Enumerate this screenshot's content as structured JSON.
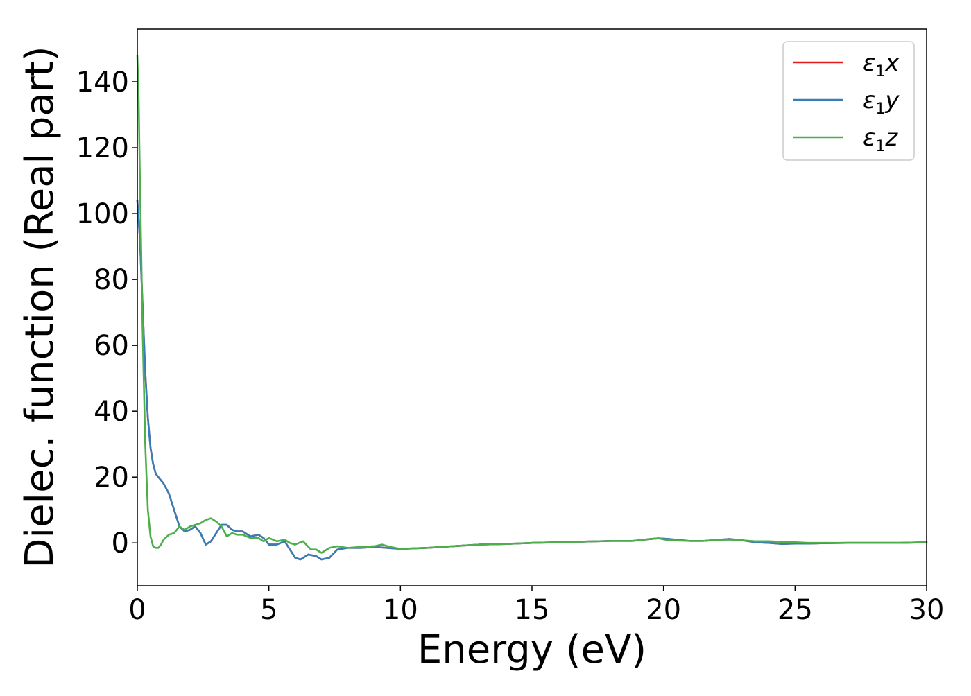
{
  "chart_data": {
    "type": "line",
    "title": "",
    "xlabel": "Energy (eV)",
    "ylabel": "Dielec. function (Real part)",
    "xlim": [
      0,
      30
    ],
    "ylim": [
      -13,
      156
    ],
    "xticks": [
      0,
      5,
      10,
      15,
      20,
      25,
      30
    ],
    "yticks": [
      0,
      20,
      40,
      60,
      80,
      100,
      120,
      140
    ],
    "xtick_labels": [
      "0",
      "5",
      "10",
      "15",
      "20",
      "25",
      "30"
    ],
    "ytick_labels": [
      "0",
      "20",
      "40",
      "60",
      "80",
      "100",
      "120",
      "140"
    ],
    "grid": false,
    "legend_position": "top-right",
    "legend": [
      {
        "symbol": "ε",
        "subscript": "1",
        "suffix": "x",
        "color": "#e41a1c"
      },
      {
        "symbol": "ε",
        "subscript": "1",
        "suffix": "y",
        "color": "#377eb8"
      },
      {
        "symbol": "ε",
        "subscript": "1",
        "suffix": "z",
        "color": "#4daf4a"
      }
    ],
    "series": [
      {
        "color": "#e41a1c",
        "x": [
          0.0,
          0.1,
          0.2,
          0.3,
          0.4,
          0.5,
          0.6,
          0.7,
          0.8,
          0.9,
          1.0,
          1.2,
          1.4,
          1.6,
          1.8,
          2.0,
          2.2,
          2.4,
          2.6,
          2.8,
          3.0,
          3.2,
          3.4,
          3.6,
          3.8,
          4.0,
          4.3,
          4.6,
          4.8,
          5.0,
          5.3,
          5.6,
          5.8,
          6.0,
          6.2,
          6.5,
          6.8,
          7.0,
          7.3,
          7.6,
          8.0,
          8.5,
          9.0,
          9.5,
          10.0,
          11.0,
          12.0,
          13.0,
          14.0,
          15.0,
          16.0,
          17.0,
          18.0,
          18.8,
          19.5,
          19.8,
          20.2,
          21.0,
          21.5,
          22.0,
          22.5,
          23.0,
          23.5,
          24.0,
          24.5,
          25.0,
          25.5,
          26.0,
          27.0,
          28.0,
          29.0,
          30.0
        ],
        "y": [
          104,
          92,
          72,
          52,
          38,
          29,
          24,
          21,
          20,
          19,
          18,
          15,
          10,
          5,
          3.5,
          4,
          5,
          3,
          -0.5,
          0.5,
          3,
          5.5,
          5.5,
          4,
          3.5,
          3.5,
          2,
          2.5,
          1.5,
          -0.5,
          -0.5,
          0.5,
          -2,
          -4.5,
          -5,
          -3.5,
          -4,
          -5,
          -4.5,
          -2,
          -1.5,
          -1.5,
          -1.2,
          -1.5,
          -1.8,
          -1.5,
          -1,
          -0.5,
          -0.3,
          0,
          0.2,
          0.4,
          0.6,
          0.6,
          1.2,
          1.4,
          1.2,
          0.6,
          0.6,
          0.9,
          1.2,
          0.8,
          0.2,
          0,
          -0.3,
          -0.2,
          -0.2,
          -0.1,
          0,
          0,
          0,
          0.2
        ]
      },
      {
        "color": "#377eb8",
        "x": [
          0.0,
          0.1,
          0.2,
          0.3,
          0.4,
          0.5,
          0.6,
          0.7,
          0.8,
          0.9,
          1.0,
          1.2,
          1.4,
          1.6,
          1.8,
          2.0,
          2.2,
          2.4,
          2.6,
          2.8,
          3.0,
          3.2,
          3.4,
          3.6,
          3.8,
          4.0,
          4.3,
          4.6,
          4.8,
          5.0,
          5.3,
          5.6,
          5.8,
          6.0,
          6.2,
          6.5,
          6.8,
          7.0,
          7.3,
          7.6,
          8.0,
          8.5,
          9.0,
          9.5,
          10.0,
          11.0,
          12.0,
          13.0,
          14.0,
          15.0,
          16.0,
          17.0,
          18.0,
          18.8,
          19.5,
          19.8,
          20.2,
          21.0,
          21.5,
          22.0,
          22.5,
          23.0,
          23.5,
          24.0,
          24.5,
          25.0,
          25.5,
          26.0,
          27.0,
          28.0,
          29.0,
          30.0
        ],
        "y": [
          104,
          92,
          72,
          52,
          38,
          29,
          24,
          21,
          20,
          19,
          18,
          15,
          10,
          5,
          3.5,
          4,
          5,
          3,
          -0.5,
          0.5,
          3,
          5.5,
          5.5,
          4,
          3.5,
          3.5,
          2,
          2.5,
          1.5,
          -0.5,
          -0.5,
          0.5,
          -2,
          -4.5,
          -5,
          -3.5,
          -4,
          -5,
          -4.5,
          -2,
          -1.5,
          -1.5,
          -1.2,
          -1.5,
          -1.8,
          -1.5,
          -1,
          -0.5,
          -0.3,
          0,
          0.2,
          0.4,
          0.6,
          0.6,
          1.2,
          1.4,
          1.2,
          0.6,
          0.6,
          0.9,
          1.2,
          0.8,
          0.2,
          0,
          -0.3,
          -0.2,
          -0.2,
          -0.1,
          0,
          0,
          0,
          0.2
        ]
      },
      {
        "color": "#4daf4a",
        "x": [
          0.0,
          0.05,
          0.1,
          0.2,
          0.3,
          0.4,
          0.5,
          0.6,
          0.7,
          0.8,
          0.9,
          1.0,
          1.2,
          1.4,
          1.6,
          1.8,
          2.0,
          2.2,
          2.4,
          2.6,
          2.8,
          3.0,
          3.2,
          3.4,
          3.6,
          3.8,
          4.0,
          4.3,
          4.6,
          4.8,
          5.0,
          5.3,
          5.6,
          5.8,
          6.0,
          6.3,
          6.6,
          6.8,
          7.0,
          7.3,
          7.6,
          8.0,
          8.5,
          9.0,
          9.3,
          9.6,
          10.0,
          11.0,
          12.0,
          13.0,
          14.0,
          15.0,
          16.0,
          17.0,
          18.0,
          18.8,
          19.5,
          19.8,
          20.2,
          21.0,
          21.5,
          22.0,
          22.5,
          23.0,
          23.5,
          24.0,
          24.5,
          25.0,
          25.5,
          26.0,
          27.0,
          28.0,
          29.0,
          30.0
        ],
        "y": [
          148,
          135,
          110,
          65,
          30,
          10,
          2,
          -1,
          -1.5,
          -1.5,
          -0.5,
          1,
          2.5,
          3,
          5,
          4,
          5,
          5.5,
          6,
          7,
          7.5,
          6.5,
          5,
          2,
          3,
          2.5,
          2.5,
          1.5,
          1.5,
          0.5,
          1.5,
          0.5,
          1,
          0,
          -0.5,
          0.5,
          -2,
          -2,
          -3,
          -1.5,
          -1,
          -1.5,
          -1.2,
          -1,
          -0.5,
          -1.2,
          -1.8,
          -1.5,
          -1,
          -0.5,
          -0.3,
          0,
          0.2,
          0.4,
          0.6,
          0.6,
          1.2,
          1.4,
          0.8,
          0.6,
          0.6,
          0.9,
          1.0,
          0.8,
          0.5,
          0.5,
          0.3,
          0.2,
          0,
          0,
          0,
          0,
          0,
          0.2
        ]
      }
    ]
  }
}
